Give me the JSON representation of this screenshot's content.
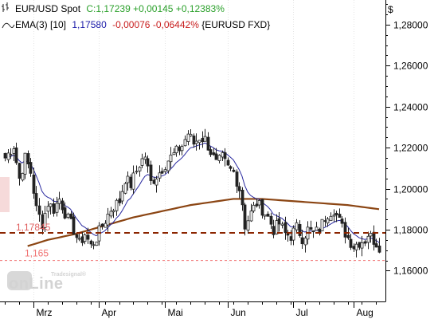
{
  "header": {
    "instrument_label": "EUR/USD Spot",
    "close_label": "C:1,17239 +0,00145 +0,12383%",
    "ema_label": "EMA(3) [10]",
    "ema_value": "1,17580",
    "ema_change": "-0,00076 -0,06442% ",
    "ema_symbol": "{EURUSD FXD}"
  },
  "axis": {
    "currency_label": "$"
  },
  "watermark": {
    "brand_small": "Tradesignal®",
    "brand_large": "onLine"
  },
  "level_labels": {
    "level_upper": "1,17845",
    "level_lower": "1,165"
  },
  "colors": {
    "close_label": "#2aa02a",
    "ema_value": "#1a1aa8",
    "ema_change": "#c81e1e",
    "candle": "#222222",
    "ema_short": "#2a2aa0",
    "ema_long": "#8b4513",
    "level_upper": "#8b2500",
    "level_lower": "#f07070"
  },
  "chart_data": {
    "type": "candlestick",
    "ylim": [
      1.145,
      1.292
    ],
    "yticks": [
      "1,28000",
      "1,26000",
      "1,24000",
      "1,22000",
      "1,20000",
      "1,18000",
      "1,16000"
    ],
    "ytick_values": [
      1.28,
      1.26,
      1.24,
      1.22,
      1.2,
      1.18,
      1.16
    ],
    "xticks": [
      "Mrz",
      "Apr",
      "Mai",
      "Jun",
      "Jul",
      "Aug"
    ],
    "xtick_index": [
      10,
      33,
      56,
      78,
      101,
      122
    ],
    "n_bars": 132,
    "close_anchors": [
      [
        0,
        1.215
      ],
      [
        3,
        1.221
      ],
      [
        5,
        1.205
      ],
      [
        7,
        1.215
      ],
      [
        9,
        1.208
      ],
      [
        11,
        1.19
      ],
      [
        13,
        1.183
      ],
      [
        15,
        1.193
      ],
      [
        17,
        1.19
      ],
      [
        19,
        1.195
      ],
      [
        22,
        1.185
      ],
      [
        24,
        1.18
      ],
      [
        26,
        1.173
      ],
      [
        28,
        1.178
      ],
      [
        30,
        1.172
      ],
      [
        32,
        1.176
      ],
      [
        34,
        1.182
      ],
      [
        37,
        1.19
      ],
      [
        40,
        1.194
      ],
      [
        42,
        1.205
      ],
      [
        44,
        1.202
      ],
      [
        47,
        1.212
      ],
      [
        49,
        1.216
      ],
      [
        51,
        1.203
      ],
      [
        54,
        1.208
      ],
      [
        57,
        1.214
      ],
      [
        60,
        1.218
      ],
      [
        62,
        1.221
      ],
      [
        64,
        1.227
      ],
      [
        66,
        1.222
      ],
      [
        68,
        1.225
      ],
      [
        70,
        1.224
      ],
      [
        72,
        1.218
      ],
      [
        74,
        1.212
      ],
      [
        76,
        1.215
      ],
      [
        78,
        1.21
      ],
      [
        80,
        1.208
      ],
      [
        82,
        1.2
      ],
      [
        83,
        1.193
      ],
      [
        84,
        1.182
      ],
      [
        86,
        1.188
      ],
      [
        88,
        1.193
      ],
      [
        90,
        1.19
      ],
      [
        92,
        1.186
      ],
      [
        94,
        1.18
      ],
      [
        96,
        1.183
      ],
      [
        98,
        1.178
      ],
      [
        100,
        1.177
      ],
      [
        102,
        1.181
      ],
      [
        104,
        1.176
      ],
      [
        106,
        1.18
      ],
      [
        108,
        1.178
      ],
      [
        110,
        1.18
      ],
      [
        112,
        1.186
      ],
      [
        113,
        1.188
      ],
      [
        115,
        1.19
      ],
      [
        117,
        1.184
      ],
      [
        118,
        1.181
      ],
      [
        120,
        1.176
      ],
      [
        122,
        1.172
      ],
      [
        124,
        1.174
      ],
      [
        126,
        1.175
      ],
      [
        127,
        1.178
      ],
      [
        129,
        1.175
      ],
      [
        131,
        1.172
      ]
    ],
    "ema_long_anchors": [
      [
        8,
        1.172
      ],
      [
        15,
        1.175
      ],
      [
        25,
        1.178
      ],
      [
        35,
        1.182
      ],
      [
        45,
        1.186
      ],
      [
        55,
        1.189
      ],
      [
        65,
        1.192
      ],
      [
        75,
        1.194
      ],
      [
        80,
        1.195
      ],
      [
        90,
        1.195
      ],
      [
        100,
        1.194
      ],
      [
        110,
        1.193
      ],
      [
        120,
        1.192
      ],
      [
        131,
        1.19
      ]
    ],
    "level_upper": 1.17845,
    "level_lower": 1.165,
    "series": [
      {
        "name": "EUR/USD Spot",
        "kind": "ohlc"
      },
      {
        "name": "EMA(3) [10]",
        "kind": "line"
      }
    ]
  }
}
